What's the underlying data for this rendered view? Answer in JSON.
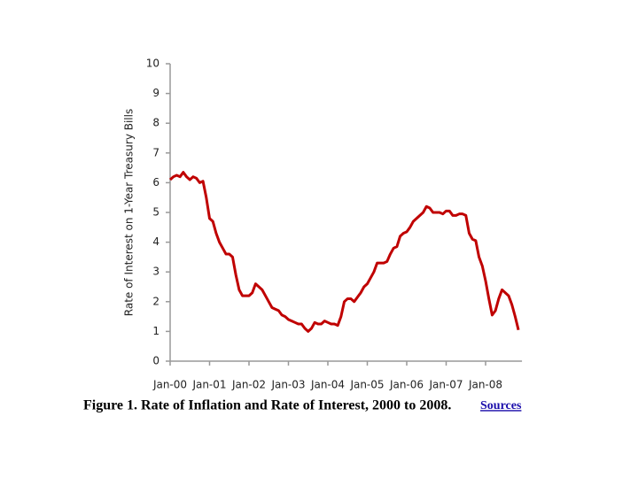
{
  "chart_data": {
    "type": "line",
    "y_label": "Rate of Interest on 1-Year Treasury Bills",
    "caption": "Figure 1. Rate of Inflation and Rate of Interest, 2000 to 2008.",
    "link": "Sources",
    "categories": [
      "Jan-00",
      null,
      null,
      null,
      null,
      null,
      null,
      null,
      null,
      null,
      null,
      null,
      "Jan-01",
      null,
      null,
      null,
      null,
      null,
      null,
      null,
      null,
      null,
      null,
      null,
      "Jan-02",
      null,
      null,
      null,
      null,
      null,
      null,
      null,
      null,
      null,
      null,
      null,
      "Jan-03",
      null,
      null,
      null,
      null,
      null,
      null,
      null,
      null,
      null,
      null,
      null,
      "Jan-04",
      null,
      null,
      null,
      null,
      null,
      null,
      null,
      null,
      null,
      null,
      null,
      "Jan-05",
      null,
      null,
      null,
      null,
      null,
      null,
      null,
      null,
      null,
      null,
      null,
      "Jan-06",
      null,
      null,
      null,
      null,
      null,
      null,
      null,
      null,
      null,
      null,
      null,
      "Jan-07",
      null,
      null,
      null,
      null,
      null,
      null,
      null,
      null,
      null,
      null,
      null,
      "Jan-08",
      null,
      null,
      null,
      null,
      null,
      null,
      null,
      null,
      null,
      null
    ],
    "series": [
      {
        "color": "#c00000",
        "values": [
          6.1,
          6.2,
          6.25,
          6.2,
          6.35,
          6.2,
          6.1,
          6.2,
          6.15,
          6.0,
          6.05,
          5.5,
          4.8,
          4.7,
          4.3,
          4.0,
          3.8,
          3.6,
          3.6,
          3.5,
          2.9,
          2.4,
          2.2,
          2.2,
          2.2,
          2.3,
          2.6,
          2.5,
          2.4,
          2.2,
          2.0,
          1.8,
          1.75,
          1.7,
          1.55,
          1.5,
          1.4,
          1.35,
          1.3,
          1.25,
          1.25,
          1.1,
          1.0,
          1.1,
          1.3,
          1.25,
          1.25,
          1.35,
          1.3,
          1.25,
          1.25,
          1.2,
          1.5,
          2.0,
          2.1,
          2.1,
          2.0,
          2.15,
          2.3,
          2.5,
          2.6,
          2.8,
          3.0,
          3.3,
          3.3,
          3.3,
          3.35,
          3.6,
          3.8,
          3.85,
          4.2,
          4.3,
          4.35,
          4.5,
          4.7,
          4.8,
          4.9,
          5.0,
          5.2,
          5.15,
          5.0,
          5.0,
          5.0,
          4.95,
          5.05,
          5.05,
          4.9,
          4.9,
          4.95,
          4.95,
          4.9,
          4.3,
          4.1,
          4.05,
          3.5,
          3.2,
          2.7,
          2.1,
          1.55,
          1.7,
          2.1,
          2.4,
          2.3,
          2.2,
          1.9,
          1.5,
          1.05
        ]
      }
    ],
    "ylim": [
      0,
      10
    ],
    "yticks": [
      0,
      1,
      2,
      3,
      4,
      5,
      6,
      7,
      8,
      9,
      10
    ]
  }
}
